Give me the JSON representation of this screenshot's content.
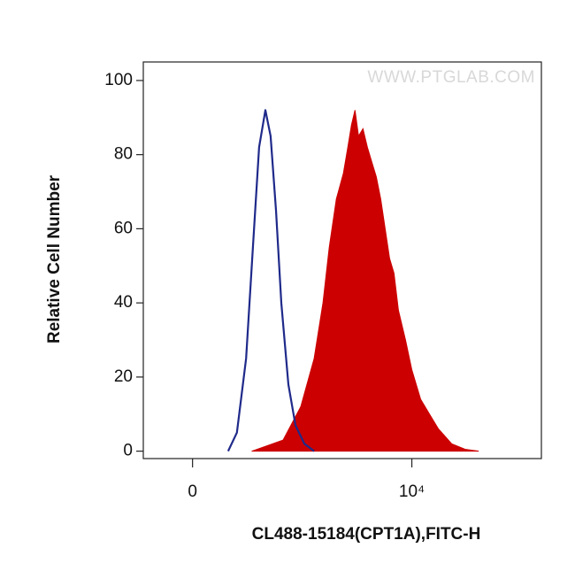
{
  "chart_data": {
    "type": "line",
    "watermark": "WWW.PTGLAB.COM",
    "xlabel": "CL488-15184(CPT1A),FITC-H",
    "ylabel": "Relative Cell Number",
    "x_scale": "asinh",
    "x_asinh_cofactor": 150,
    "xlim": [
      -200,
      180000
    ],
    "xticks": [
      0,
      {
        "value": 10000,
        "label": "10⁴"
      }
    ],
    "ylim": [
      -2,
      105
    ],
    "yticks": [
      0,
      20,
      40,
      60,
      80,
      100
    ],
    "series": [
      {
        "color": "#cc0000",
        "fill": true,
        "x": [
          263,
          555,
          833,
          1125,
          1374,
          1581,
          1851,
          2170,
          2396,
          2596,
          2810,
          3042,
          3358,
          3708,
          4094,
          4521,
          4993,
          5512,
          6084,
          6717,
          7417,
          8685,
          9980,
          12165,
          14820,
          18075,
          24330,
          32745,
          44085
        ],
        "values": [
          0,
          3,
          12,
          25,
          40,
          55,
          68,
          75,
          82,
          88,
          92,
          85,
          87,
          82,
          78,
          74,
          68,
          60,
          52,
          48,
          38,
          30,
          22,
          14,
          10,
          6,
          2,
          0.5,
          0
        ]
      },
      {
        "color": "#1f2a8a",
        "fill": false,
        "x": [
          132,
          174,
          225,
          269,
          314,
          366,
          415,
          471,
          533,
          628,
          738,
          903,
          1125
        ],
        "values": [
          0,
          5,
          25,
          55,
          82,
          92,
          85,
          65,
          40,
          18,
          7,
          2,
          0
        ]
      }
    ]
  }
}
